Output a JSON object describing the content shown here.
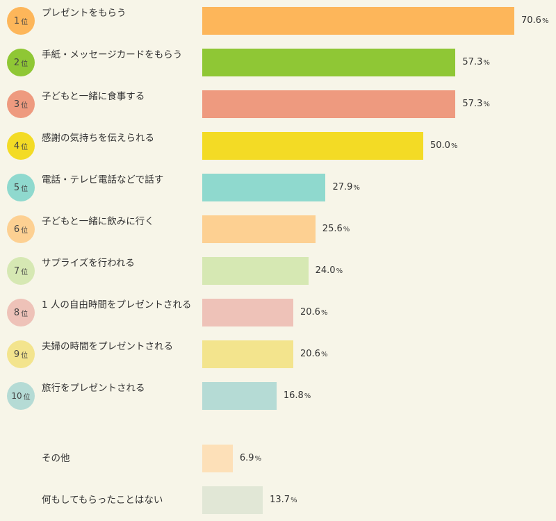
{
  "chart_data": {
    "type": "bar",
    "orientation": "horizontal",
    "unit": "%",
    "rank_suffix": "位",
    "xlim": [
      0,
      70.6
    ],
    "categories": [
      "プレゼントをもらう",
      "手紙・メッセージカードをもらう",
      "子どもと一緒に食事する",
      "感謝の気持ちを伝えられる",
      "電話・テレビ電話などで話す",
      "子どもと一緒に飲みに行く",
      "サプライズを行われる",
      "1 人の自由時間をプレゼントされる",
      "夫婦の時間をプレゼントされる",
      "旅行をプレゼントされる"
    ],
    "ranks": [
      "1",
      "2",
      "3",
      "4",
      "5",
      "6",
      "7",
      "8",
      "9",
      "10"
    ],
    "values": [
      70.6,
      57.3,
      57.3,
      50.0,
      27.9,
      25.6,
      24.0,
      20.6,
      20.6,
      16.8
    ],
    "value_labels": [
      "70.6",
      "57.3",
      "57.3",
      "50.0",
      "27.9",
      "25.6",
      "24.0",
      "20.6",
      "20.6",
      "16.8"
    ],
    "colors": [
      "#fdb65a",
      "#8fc735",
      "#ee9a7f",
      "#f3db25",
      "#8fd9ce",
      "#fdd092",
      "#d6e8b3",
      "#eec2b8",
      "#f3e48d",
      "#b5dbd5"
    ],
    "badge_colors": [
      "#fdb65a",
      "#8fc735",
      "#ee9a7f",
      "#f3db25",
      "#8fd9ce",
      "#fdd092",
      "#d6e8b3",
      "#eec2b8",
      "#f3e48d",
      "#b5dbd5"
    ],
    "others": {
      "categories": [
        "その他",
        "何もしてもらったことはない"
      ],
      "values": [
        6.9,
        13.7
      ],
      "value_labels": [
        "6.9",
        "13.7"
      ],
      "colors": [
        "#fde0b8",
        "#e1e7d6"
      ]
    }
  }
}
